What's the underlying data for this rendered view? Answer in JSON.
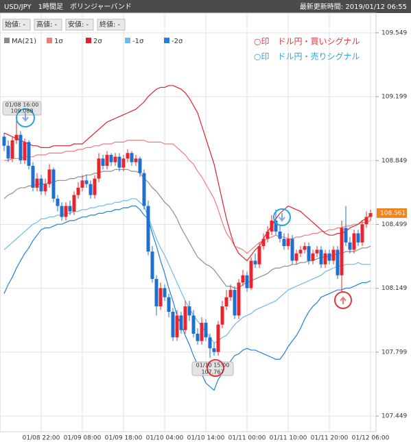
{
  "header": {
    "title": "USD/JPY　1時間足　ボリンジャーバンド",
    "updated": "最新更新時間: 2019/01/12 06:55"
  },
  "ohlc_labels": [
    "始値: -",
    "高値: -",
    "安値: -",
    "終値: -"
  ],
  "chart_data": {
    "type": "candlestick",
    "categories": [
      null,
      null,
      null,
      null,
      null,
      null,
      null,
      null,
      null,
      "01/08 22:00",
      null,
      null,
      null,
      null,
      null,
      null,
      null,
      null,
      null,
      "01/09 08:00",
      null,
      null,
      null,
      null,
      null,
      null,
      null,
      null,
      null,
      "01/09 18:00",
      null,
      null,
      null,
      null,
      null,
      null,
      null,
      null,
      null,
      "01/10 04:00",
      null,
      null,
      null,
      null,
      null,
      null,
      null,
      null,
      null,
      "01/10 14:00",
      null,
      null,
      null,
      null,
      null,
      null,
      null,
      null,
      null,
      "01/11 00:00",
      null,
      null,
      null,
      null,
      null,
      null,
      null,
      null,
      null,
      "01/11 10:00",
      null,
      null,
      null,
      null,
      null,
      null,
      null,
      null,
      null,
      "01/11 20:00",
      null,
      null,
      null,
      null,
      null,
      null,
      null,
      null,
      null,
      "01/12 06:00"
    ],
    "open": [
      108.98,
      108.93,
      108.86,
      108.96,
      108.99,
      108.85,
      108.95,
      108.82,
      108.7,
      108.75,
      108.68,
      108.72,
      108.8,
      108.64,
      108.6,
      108.54,
      108.6,
      108.57,
      108.66,
      108.7,
      108.74,
      108.72,
      108.66,
      108.75,
      108.86,
      108.82,
      108.88,
      108.84,
      108.87,
      108.81,
      108.86,
      108.89,
      108.84,
      108.86,
      108.78,
      108.6,
      108.35,
      108.2,
      108.05,
      108.15,
      108.1,
      108.02,
      107.88,
      108.0,
      107.92,
      108.05,
      108.0,
      107.9,
      107.86,
      107.96,
      107.88,
      107.82,
      107.8,
      107.95,
      108.05,
      108.1,
      108.14,
      108.0,
      108.18,
      108.22,
      108.15,
      108.3,
      108.28,
      108.38,
      108.42,
      108.46,
      108.52,
      108.46,
      108.42,
      108.38,
      108.42,
      108.3,
      108.34,
      108.36,
      108.38,
      108.3,
      108.34,
      108.36,
      108.28,
      108.34,
      108.3,
      108.36,
      108.22,
      108.48,
      108.4,
      108.36,
      108.45,
      108.4,
      108.5,
      108.54
    ],
    "high": [
      109.0,
      108.96,
      108.98,
      109.088,
      109.01,
      108.97,
      108.96,
      108.84,
      108.78,
      108.77,
      108.75,
      108.83,
      108.81,
      108.66,
      108.62,
      108.62,
      108.63,
      108.68,
      108.73,
      108.77,
      108.77,
      108.74,
      108.77,
      108.89,
      108.88,
      108.9,
      108.89,
      108.89,
      108.89,
      108.88,
      108.91,
      108.9,
      108.88,
      108.87,
      108.8,
      108.63,
      108.38,
      108.22,
      108.18,
      108.17,
      108.12,
      108.04,
      108.03,
      108.02,
      108.08,
      108.08,
      108.03,
      107.93,
      107.99,
      107.98,
      107.9,
      107.85,
      107.97,
      108.08,
      108.14,
      108.17,
      108.16,
      108.2,
      108.25,
      108.24,
      108.32,
      108.34,
      108.4,
      108.45,
      108.49,
      108.55,
      108.58,
      108.49,
      108.45,
      108.45,
      108.44,
      108.36,
      108.38,
      108.4,
      108.4,
      108.36,
      108.38,
      108.38,
      108.36,
      108.36,
      108.38,
      108.38,
      108.52,
      108.6,
      108.43,
      108.47,
      108.47,
      108.52,
      108.57,
      108.58
    ],
    "low": [
      108.9,
      108.84,
      108.84,
      108.94,
      108.83,
      108.83,
      108.8,
      108.68,
      108.68,
      108.66,
      108.66,
      108.7,
      108.62,
      108.57,
      108.52,
      108.52,
      108.55,
      108.55,
      108.64,
      108.68,
      108.7,
      108.64,
      108.64,
      108.73,
      108.8,
      108.8,
      108.82,
      108.82,
      108.79,
      108.79,
      108.84,
      108.82,
      108.82,
      108.76,
      108.58,
      108.33,
      108.18,
      108.0,
      108.03,
      108.08,
      107.99,
      107.86,
      107.86,
      107.9,
      107.9,
      107.97,
      107.88,
      107.84,
      107.84,
      107.86,
      107.767,
      107.78,
      107.78,
      107.93,
      108.03,
      108.08,
      107.98,
      107.98,
      108.16,
      108.13,
      108.14,
      108.26,
      108.26,
      108.36,
      108.4,
      108.44,
      108.44,
      108.4,
      108.36,
      108.36,
      108.28,
      108.28,
      108.32,
      108.34,
      108.28,
      108.28,
      108.32,
      108.26,
      108.26,
      108.28,
      108.28,
      108.2,
      108.13,
      108.38,
      108.34,
      108.34,
      108.38,
      108.38,
      108.48,
      108.52
    ],
    "close": [
      108.93,
      108.86,
      108.96,
      108.99,
      108.85,
      108.95,
      108.82,
      108.7,
      108.75,
      108.68,
      108.72,
      108.8,
      108.64,
      108.6,
      108.54,
      108.6,
      108.57,
      108.66,
      108.7,
      108.74,
      108.72,
      108.66,
      108.75,
      108.86,
      108.82,
      108.88,
      108.84,
      108.87,
      108.81,
      108.86,
      108.89,
      108.84,
      108.86,
      108.78,
      108.6,
      108.35,
      108.2,
      108.05,
      108.15,
      108.1,
      108.02,
      107.88,
      108.0,
      107.92,
      108.05,
      108.0,
      107.9,
      107.86,
      107.96,
      107.88,
      107.82,
      107.8,
      107.95,
      108.05,
      108.1,
      108.14,
      108.0,
      108.18,
      108.22,
      108.15,
      108.3,
      108.28,
      108.38,
      108.42,
      108.46,
      108.52,
      108.46,
      108.42,
      108.38,
      108.42,
      108.3,
      108.34,
      108.36,
      108.38,
      108.3,
      108.34,
      108.36,
      108.28,
      108.34,
      108.3,
      108.36,
      108.22,
      108.48,
      108.4,
      108.36,
      108.45,
      108.4,
      108.5,
      108.54,
      108.561
    ],
    "up_color": "#e8252d",
    "down_color": "#1d6fd0",
    "last_color": "#f0841e",
    "series": [
      {
        "name": "MA(21)",
        "color": "#8c8c8c",
        "values": [
          108.64,
          108.66,
          108.67,
          108.69,
          108.7,
          108.7,
          108.71,
          108.71,
          108.72,
          108.72,
          108.72,
          108.73,
          108.73,
          108.74,
          108.74,
          108.74,
          108.75,
          108.75,
          108.76,
          108.76,
          108.77,
          108.77,
          108.78,
          108.78,
          108.79,
          108.79,
          108.79,
          108.8,
          108.8,
          108.8,
          108.8,
          108.79,
          108.79,
          108.78,
          108.75,
          108.73,
          108.7,
          108.68,
          108.65,
          108.62,
          108.6,
          108.57,
          108.53,
          108.48,
          108.44,
          108.4,
          108.36,
          108.32,
          108.3,
          108.28,
          108.27,
          108.25,
          108.22,
          108.19,
          108.16,
          108.16,
          108.15,
          108.15,
          108.17,
          108.18,
          108.19,
          108.2,
          108.21,
          108.22,
          108.23,
          108.25,
          108.26,
          108.26,
          108.27,
          108.27,
          108.28,
          108.28,
          108.29,
          108.29,
          108.3,
          108.3,
          108.31,
          108.32,
          108.32,
          108.33,
          108.33,
          108.34,
          108.34,
          108.35,
          108.35,
          108.35,
          108.36,
          108.37,
          108.37,
          108.38
        ]
      },
      {
        "name": "1σ",
        "color": "#f07a7a",
        "values": [
          108.85,
          108.85,
          108.86,
          108.86,
          108.86,
          108.87,
          108.87,
          108.87,
          108.88,
          108.88,
          108.88,
          108.89,
          108.89,
          108.89,
          108.89,
          108.9,
          108.9,
          108.9,
          108.91,
          108.91,
          108.92,
          108.92,
          108.93,
          108.93,
          108.94,
          108.94,
          108.94,
          108.95,
          108.95,
          108.95,
          108.96,
          108.96,
          108.96,
          108.96,
          108.96,
          108.95,
          108.95,
          108.95,
          108.95,
          108.94,
          108.94,
          108.94,
          108.92,
          108.9,
          108.88,
          108.85,
          108.83,
          108.79,
          108.76,
          108.72,
          108.68,
          108.64,
          108.58,
          108.51,
          108.45,
          108.42,
          108.38,
          108.37,
          108.36,
          108.34,
          108.36,
          108.38,
          108.4,
          108.41,
          108.42,
          108.43,
          108.44,
          108.43,
          108.43,
          108.42,
          108.42,
          108.43,
          108.43,
          108.44,
          108.44,
          108.45,
          108.45,
          108.46,
          108.46,
          108.47,
          108.47,
          108.48,
          108.48,
          108.49,
          108.49,
          108.5,
          108.5,
          108.51,
          108.51,
          108.52
        ]
      },
      {
        "name": "2σ",
        "color": "#e0202c",
        "values": [
          109.0,
          108.99,
          108.98,
          108.97,
          108.96,
          108.95,
          108.94,
          108.93,
          108.93,
          108.92,
          108.92,
          108.92,
          108.93,
          108.93,
          108.93,
          108.93,
          108.93,
          108.94,
          108.94,
          108.94,
          108.96,
          108.98,
          109.0,
          109.02,
          109.04,
          109.06,
          109.07,
          109.08,
          109.09,
          109.1,
          109.11,
          109.12,
          109.13,
          109.15,
          109.17,
          109.2,
          109.22,
          109.24,
          109.25,
          109.25,
          109.26,
          109.26,
          109.25,
          109.24,
          109.22,
          109.19,
          109.15,
          109.11,
          109.04,
          108.97,
          108.9,
          108.83,
          108.73,
          108.63,
          108.53,
          108.45,
          108.38,
          108.34,
          108.32,
          108.3,
          108.33,
          108.36,
          108.38,
          108.42,
          108.46,
          108.49,
          108.53,
          108.56,
          108.58,
          108.6,
          108.59,
          108.58,
          108.57,
          108.55,
          108.53,
          108.51,
          108.49,
          108.47,
          108.45,
          108.44,
          108.44,
          108.45,
          108.45,
          108.46,
          108.48,
          108.49,
          108.5,
          108.52,
          108.53,
          108.55
        ]
      },
      {
        "name": "-1σ",
        "color": "#6cb8ef",
        "values": [
          108.36,
          108.38,
          108.4,
          108.42,
          108.44,
          108.46,
          108.48,
          108.5,
          108.51,
          108.53,
          108.53,
          108.54,
          108.54,
          108.55,
          108.55,
          108.56,
          108.56,
          108.57,
          108.57,
          108.58,
          108.58,
          108.59,
          108.59,
          108.6,
          108.6,
          108.61,
          108.61,
          108.62,
          108.62,
          108.63,
          108.63,
          108.64,
          108.64,
          108.62,
          108.6,
          108.54,
          108.48,
          108.42,
          108.37,
          108.33,
          108.28,
          108.23,
          108.18,
          108.13,
          108.08,
          108.04,
          108.0,
          107.97,
          107.94,
          107.91,
          107.88,
          107.85,
          107.86,
          107.88,
          107.89,
          107.92,
          107.95,
          107.97,
          107.99,
          108.0,
          108.01,
          108.03,
          108.04,
          108.05,
          108.06,
          108.07,
          108.08,
          108.1,
          108.12,
          108.14,
          108.15,
          108.16,
          108.17,
          108.18,
          108.19,
          108.2,
          108.21,
          108.22,
          108.24,
          108.25,
          108.26,
          108.27,
          108.27,
          108.28,
          108.28,
          108.28,
          108.29,
          108.28,
          108.28,
          108.28
        ]
      },
      {
        "name": "-2σ",
        "color": "#1f7fd6",
        "values": [
          108.12,
          108.17,
          108.21,
          108.26,
          108.3,
          108.34,
          108.37,
          108.41,
          108.44,
          108.47,
          108.48,
          108.48,
          108.49,
          108.5,
          108.5,
          108.51,
          108.52,
          108.52,
          108.53,
          108.54,
          108.54,
          108.55,
          108.55,
          108.56,
          108.56,
          108.57,
          108.57,
          108.58,
          108.58,
          108.59,
          108.59,
          108.6,
          108.6,
          108.58,
          108.55,
          108.53,
          108.45,
          108.38,
          108.3,
          108.23,
          108.15,
          108.08,
          108.0,
          107.95,
          107.89,
          107.84,
          107.78,
          107.73,
          107.68,
          107.63,
          107.61,
          107.59,
          107.65,
          107.68,
          107.71,
          107.75,
          107.78,
          107.79,
          107.81,
          107.82,
          107.81,
          107.81,
          107.8,
          107.79,
          107.78,
          107.77,
          107.76,
          107.76,
          107.79,
          107.83,
          107.86,
          107.89,
          107.93,
          107.98,
          108.02,
          108.05,
          108.07,
          108.1,
          108.11,
          108.12,
          108.13,
          108.14,
          108.14,
          108.15,
          108.15,
          108.16,
          108.17,
          108.18,
          108.18,
          108.19
        ]
      }
    ],
    "ylim": [
      107.363,
      109.616
    ],
    "yticks": [
      109.549,
      109.199,
      108.849,
      108.499,
      108.149,
      107.799,
      107.449
    ],
    "grid": true,
    "annotations": [
      {
        "text": "○印　ドル円・買いシグナル",
        "color": "#e8323c"
      },
      {
        "text": "○印　ドル円・売りシグナル",
        "color": "#29a3e0"
      }
    ],
    "tooltips": [
      {
        "label": "01/08 16:00",
        "value": 109.088
      },
      {
        "label": "01/10 15:00",
        "value": 107.767
      }
    ]
  }
}
